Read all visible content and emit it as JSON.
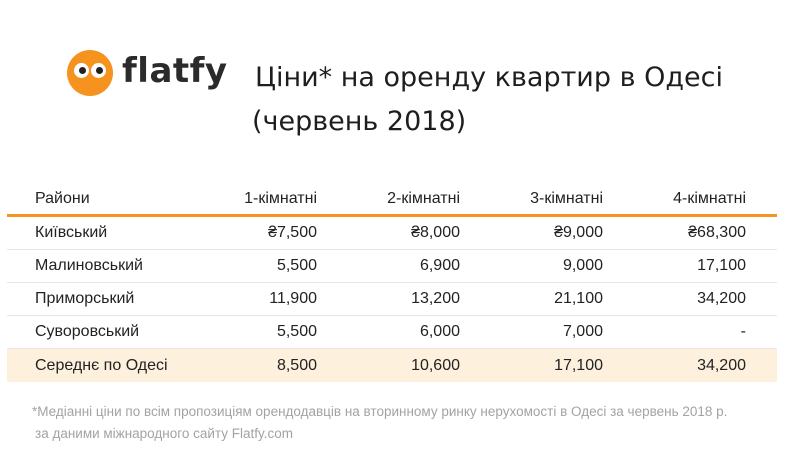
{
  "brand": {
    "name": "flatfy",
    "logo_icon": "owl-logo-icon",
    "accent": "#f5931e"
  },
  "title": {
    "line1": "Ціни* на оренду квартир в Одесі",
    "line2": "(червень 2018)"
  },
  "table": {
    "headers": [
      "Райони",
      "1-кімнатні",
      "2-кімнатні",
      "3-кімнатні",
      "4-кімнатні"
    ],
    "rows": [
      [
        "Київський",
        "₴7,500",
        "₴8,000",
        "₴9,000",
        "₴68,300"
      ],
      [
        "Малиновський",
        "5,500",
        "6,900",
        "9,000",
        "17,100"
      ],
      [
        "Приморський",
        "11,900",
        "13,200",
        "21,100",
        "34,200"
      ],
      [
        "Суворовський",
        "5,500",
        "6,000",
        "7,000",
        "-"
      ],
      [
        "Середнє по Одесі",
        "8,500",
        "10,600",
        "17,100",
        "34,200"
      ]
    ],
    "highlight_color": "#fdf1dd",
    "header_rule_color": "#f5931e"
  },
  "footnote": {
    "line1": "*Медіанні ціни по всім пропозиціям орендодавців на вторинному ринку нерухомості в Одесі за червень 2018 р.",
    "line2": "за даними міжнародного сайту Flatfy.com"
  }
}
